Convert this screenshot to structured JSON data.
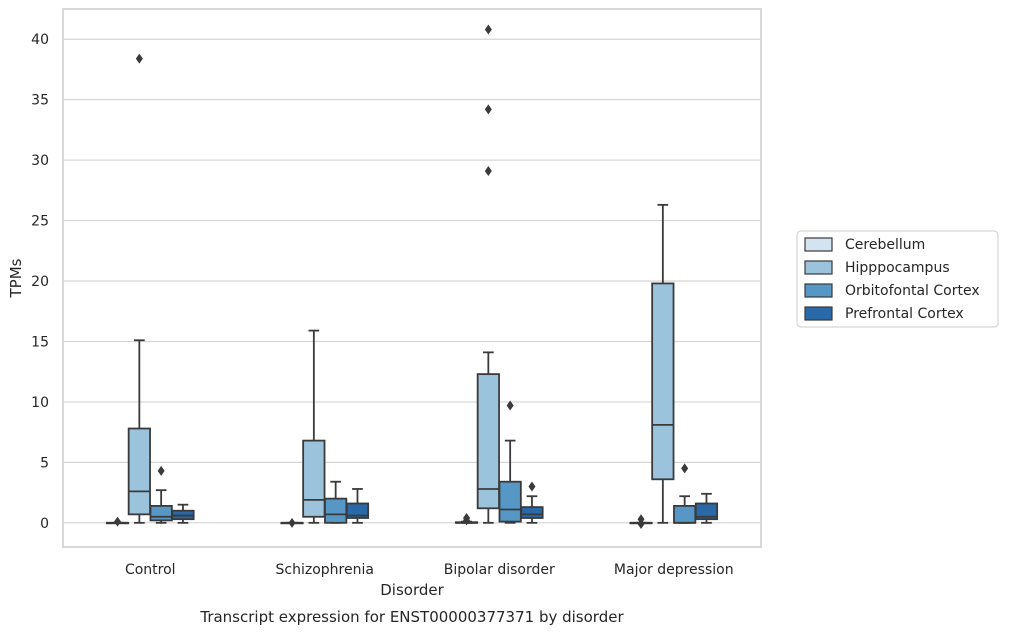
{
  "chart_data": {
    "type": "box",
    "caption": "Transcript expression for ENST00000377371 by disorder",
    "xlabel": "Disorder",
    "ylabel": "TPMs",
    "ylim": [
      -2,
      42.5
    ],
    "yticks": [
      0,
      5,
      10,
      15,
      20,
      25,
      30,
      35,
      40
    ],
    "grid": "horizontal",
    "legend_position": "right",
    "categories": [
      "Control",
      "Schizophrenia",
      "Bipolar disorder",
      "Major depression"
    ],
    "series": [
      {
        "name": "Cerebellum",
        "color": "#d4e3f0",
        "boxes": [
          {
            "whisker_low": 0,
            "q1": 0,
            "median": 0,
            "q3": 0,
            "whisker_high": 0,
            "outliers": [
              0.1
            ]
          },
          {
            "whisker_low": 0,
            "q1": 0,
            "median": 0,
            "q3": 0,
            "whisker_high": 0,
            "outliers": [
              0.0
            ]
          },
          {
            "whisker_low": 0,
            "q1": 0,
            "median": 0,
            "q3": 0.05,
            "whisker_high": 0.1,
            "outliers": [
              0.4,
              0.2
            ]
          },
          {
            "whisker_low": 0,
            "q1": 0,
            "median": 0,
            "q3": 0,
            "whisker_high": 0,
            "outliers": [
              0.3,
              -0.1
            ]
          }
        ]
      },
      {
        "name": "Hipppocampus",
        "color": "#9cc3dc",
        "boxes": [
          {
            "whisker_low": 0,
            "q1": 0.7,
            "median": 2.6,
            "q3": 7.8,
            "whisker_high": 15.1,
            "outliers": [
              38.4
            ]
          },
          {
            "whisker_low": 0,
            "q1": 0.5,
            "median": 1.9,
            "q3": 6.8,
            "whisker_high": 15.9,
            "outliers": []
          },
          {
            "whisker_low": 0,
            "q1": 1.2,
            "median": 2.8,
            "q3": 12.3,
            "whisker_high": 14.1,
            "outliers": [
              40.8,
              34.2,
              29.1
            ]
          },
          {
            "whisker_low": 0,
            "q1": 3.6,
            "median": 8.1,
            "q3": 19.8,
            "whisker_high": 26.3,
            "outliers": []
          }
        ]
      },
      {
        "name": "Orbitofontal Cortex",
        "color": "#5697c5",
        "boxes": [
          {
            "whisker_low": 0,
            "q1": 0.2,
            "median": 0.5,
            "q3": 1.4,
            "whisker_high": 2.7,
            "outliers": [
              4.3
            ]
          },
          {
            "whisker_low": 0,
            "q1": 0,
            "median": 0.7,
            "q3": 2.0,
            "whisker_high": 3.4,
            "outliers": []
          },
          {
            "whisker_low": 0,
            "q1": 0.1,
            "median": 1.1,
            "q3": 3.4,
            "whisker_high": 6.8,
            "outliers": [
              9.7
            ]
          },
          {
            "whisker_low": 0,
            "q1": 0,
            "median": 0,
            "q3": 1.4,
            "whisker_high": 2.2,
            "outliers": [
              4.5
            ]
          }
        ]
      },
      {
        "name": "Prefrontal Cortex",
        "color": "#2a69a8",
        "boxes": [
          {
            "whisker_low": 0,
            "q1": 0.3,
            "median": 0.6,
            "q3": 1.0,
            "whisker_high": 1.5,
            "outliers": []
          },
          {
            "whisker_low": 0,
            "q1": 0.4,
            "median": 0.6,
            "q3": 1.6,
            "whisker_high": 2.8,
            "outliers": []
          },
          {
            "whisker_low": 0,
            "q1": 0.4,
            "median": 0.7,
            "q3": 1.3,
            "whisker_high": 2.2,
            "outliers": [
              3.0
            ]
          },
          {
            "whisker_low": 0,
            "q1": 0.3,
            "median": 0.5,
            "q3": 1.6,
            "whisker_high": 2.4,
            "outliers": []
          }
        ]
      }
    ]
  }
}
